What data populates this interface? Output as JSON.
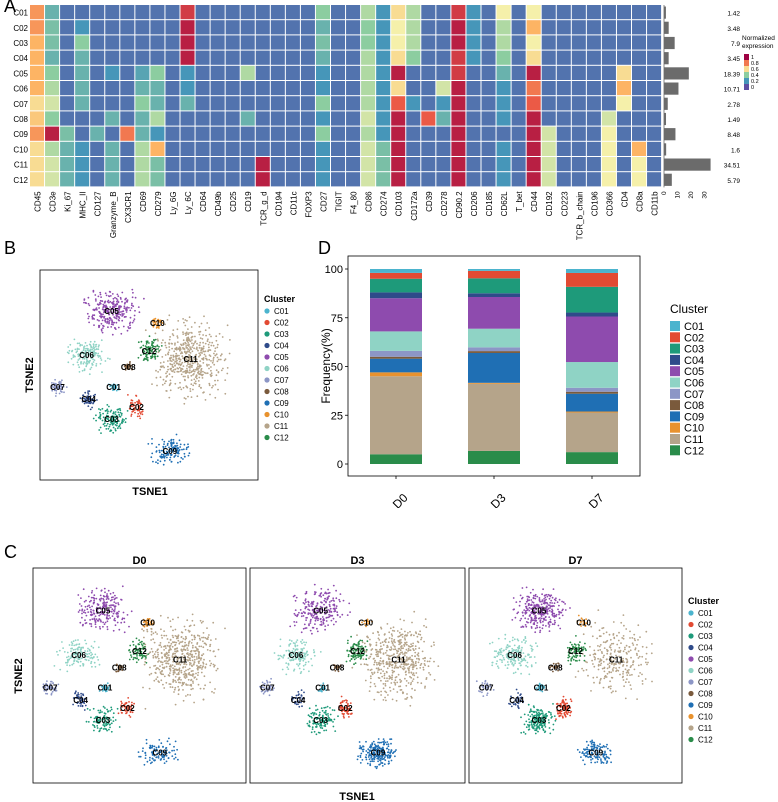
{
  "colors": {
    "clusters": [
      "#4BB4CE",
      "#E24A33",
      "#1E9A7A",
      "#2F4B8A",
      "#8E4BAE",
      "#8FD3C5",
      "#8C96C6",
      "#7A5A3C",
      "#1F6FB4",
      "#E8922E",
      "#B5A48A",
      "#2A8C4A"
    ],
    "heat_low": "#5E4FA2",
    "heat_high": "#9E0142"
  },
  "panelA": {
    "letter": "A",
    "rows": [
      "C01",
      "C02",
      "C03",
      "C04",
      "C05",
      "C06",
      "C07",
      "C08",
      "C09",
      "C10",
      "C11",
      "C12"
    ],
    "markers": [
      "CD45",
      "CD3e",
      "Ki_67",
      "MHC_II",
      "CD127",
      "Granzyme_B",
      "CX3CR1",
      "CD69",
      "CD279",
      "Ly_6G",
      "Ly_6C",
      "CD64",
      "CD49b",
      "CD25",
      "CD19",
      "TCR_g_d",
      "CD194",
      "CD11c",
      "FOXP3",
      "CD27",
      "TIGIT",
      "F4_80",
      "CD86",
      "CD274",
      "CD103",
      "CD172a",
      "CD39",
      "CD278",
      "CD90.2",
      "CD206",
      "CD185",
      "CD62L",
      "T_bet",
      "CD44",
      "CD192",
      "CD223",
      "TCR_b_chain",
      "CD196",
      "CD366",
      "CD4",
      "CD8a",
      "CD11b"
    ],
    "cluster_freq": [
      1.42,
      3.48,
      7.9,
      3.45,
      18.39,
      10.71,
      2.78,
      1.49,
      8.48,
      1.6,
      34.51,
      5.79
    ],
    "bar_ticks": [
      "0",
      "10",
      "20",
      "30"
    ],
    "legend_title": "Normalized expression",
    "legend_ticks": [
      "1",
      "0.8",
      "0.6",
      "0.4",
      "0.2",
      "0"
    ]
  },
  "panelB": {
    "letter": "B",
    "xlabel": "TSNE1",
    "ylabel": "TSNE2",
    "legend_title": "Cluster",
    "legend_items": [
      "C01",
      "C02",
      "C03",
      "C04",
      "C05",
      "C06",
      "C07",
      "C08",
      "C09",
      "C10",
      "C11",
      "C12"
    ],
    "cluster_labels": [
      "C05",
      "C10",
      "C06",
      "C12",
      "C08",
      "C11",
      "C07",
      "C01",
      "C04",
      "C02",
      "C03",
      "C09"
    ]
  },
  "panelC": {
    "letter": "C",
    "titles": [
      "D0",
      "D3",
      "D7"
    ],
    "xlabel": "TSNE1",
    "ylabel": "TSNE2",
    "legend_title": "Cluster",
    "legend_items": [
      "C01",
      "C02",
      "C03",
      "C04",
      "C05",
      "C06",
      "C07",
      "C08",
      "C09",
      "C10",
      "C11",
      "C12"
    ],
    "cluster_labels": [
      "C05",
      "C10",
      "C06",
      "C12",
      "C08",
      "C11",
      "C07",
      "C01",
      "C04",
      "C02",
      "C03",
      "C09"
    ]
  },
  "chart_data": [
    {
      "type": "heatmap",
      "rows": [
        "C01",
        "C02",
        "C03",
        "C04",
        "C05",
        "C06",
        "C07",
        "C08",
        "C09",
        "C10",
        "C11",
        "C12"
      ],
      "columns": [
        "CD45",
        "CD3e",
        "Ki_67",
        "MHC_II",
        "CD127",
        "Granzyme_B",
        "CX3CR1",
        "CD69",
        "CD279",
        "Ly_6G",
        "Ly_6C",
        "CD64",
        "CD49b",
        "CD25",
        "CD19",
        "TCR_g_d",
        "CD194",
        "CD11c",
        "FOXP3",
        "CD27",
        "TIGIT",
        "F4_80",
        "CD86",
        "CD274",
        "CD103",
        "CD172a",
        "CD39",
        "CD278",
        "CD90.2",
        "CD206",
        "CD185",
        "CD62L",
        "T_bet",
        "CD44",
        "CD192",
        "CD223",
        "TCR_b_chain",
        "CD196",
        "CD366",
        "CD4",
        "CD8a",
        "CD11b"
      ],
      "legend_title": "Normalized expression",
      "values": [
        [
          0.75,
          0.3,
          0.1,
          0.1,
          0.1,
          0.1,
          0.1,
          0.1,
          0.1,
          0.1,
          0.9,
          0.1,
          0.1,
          0.1,
          0.1,
          0.1,
          0.1,
          0.1,
          0.1,
          0.4,
          0.1,
          0.1,
          0.45,
          0.2,
          0.6,
          0.45,
          0.1,
          0.1,
          0.9,
          0.2,
          0.1,
          0.55,
          0.1,
          0.55,
          0.1,
          0.1,
          0.1,
          0.1,
          0.1,
          0.1,
          0.1,
          0.1
        ],
        [
          0.75,
          0.35,
          0.1,
          0.2,
          0.1,
          0.1,
          0.1,
          0.1,
          0.1,
          0.1,
          0.95,
          0.1,
          0.1,
          0.1,
          0.1,
          0.1,
          0.1,
          0.1,
          0.1,
          0.3,
          0.1,
          0.1,
          0.4,
          0.2,
          0.55,
          0.45,
          0.1,
          0.1,
          0.95,
          0.2,
          0.1,
          0.45,
          0.1,
          0.7,
          0.1,
          0.1,
          0.1,
          0.1,
          0.1,
          0.1,
          0.1,
          0.1
        ],
        [
          0.7,
          0.35,
          0.1,
          0.4,
          0.1,
          0.1,
          0.1,
          0.1,
          0.1,
          0.1,
          0.95,
          0.1,
          0.1,
          0.1,
          0.1,
          0.1,
          0.1,
          0.1,
          0.1,
          0.35,
          0.1,
          0.1,
          0.4,
          0.2,
          0.55,
          0.45,
          0.1,
          0.1,
          0.95,
          0.2,
          0.1,
          0.45,
          0.1,
          0.55,
          0.1,
          0.1,
          0.1,
          0.1,
          0.1,
          0.1,
          0.1,
          0.1
        ],
        [
          0.7,
          0.3,
          0.1,
          0.3,
          0.1,
          0.1,
          0.1,
          0.1,
          0.1,
          0.1,
          0.95,
          0.1,
          0.1,
          0.1,
          0.1,
          0.1,
          0.1,
          0.1,
          0.1,
          0.3,
          0.1,
          0.1,
          0.45,
          0.2,
          0.6,
          0.4,
          0.1,
          0.1,
          0.9,
          0.2,
          0.1,
          0.4,
          0.1,
          0.6,
          0.1,
          0.1,
          0.1,
          0.1,
          0.1,
          0.1,
          0.1,
          0.1
        ],
        [
          0.7,
          0.4,
          0.1,
          0.3,
          0.1,
          0.2,
          0.1,
          0.25,
          0.4,
          0.1,
          0.2,
          0.1,
          0.1,
          0.1,
          0.45,
          0.1,
          0.1,
          0.1,
          0.1,
          0.2,
          0.1,
          0.1,
          0.45,
          0.2,
          0.95,
          0.1,
          0.1,
          0.1,
          0.9,
          0.1,
          0.1,
          0.3,
          0.1,
          0.95,
          0.1,
          0.1,
          0.1,
          0.1,
          0.1,
          0.6,
          0.1,
          0.1
        ],
        [
          0.7,
          0.45,
          0.1,
          0.3,
          0.1,
          0.1,
          0.1,
          0.3,
          0.3,
          0.1,
          0.2,
          0.1,
          0.1,
          0.1,
          0.1,
          0.1,
          0.1,
          0.1,
          0.1,
          0.2,
          0.1,
          0.1,
          0.45,
          0.2,
          0.6,
          0.1,
          0.1,
          0.5,
          0.95,
          0.1,
          0.1,
          0.2,
          0.1,
          0.8,
          0.1,
          0.1,
          0.1,
          0.1,
          0.1,
          0.7,
          0.1,
          0.1
        ],
        [
          0.6,
          0.5,
          0.1,
          0.3,
          0.1,
          0.1,
          0.1,
          0.4,
          0.3,
          0.1,
          0.3,
          0.1,
          0.1,
          0.1,
          0.1,
          0.1,
          0.1,
          0.1,
          0.1,
          0.4,
          0.1,
          0.1,
          0.45,
          0.2,
          0.85,
          0.2,
          0.1,
          0.2,
          0.95,
          0.1,
          0.1,
          0.2,
          0.1,
          0.85,
          0.1,
          0.1,
          0.1,
          0.1,
          0.1,
          0.55,
          0.1,
          0.1
        ],
        [
          0.65,
          0.4,
          0.1,
          0.1,
          0.1,
          0.3,
          0.1,
          0.3,
          0.45,
          0.1,
          0.1,
          0.1,
          0.1,
          0.1,
          0.3,
          0.1,
          0.1,
          0.1,
          0.1,
          0.2,
          0.1,
          0.1,
          0.5,
          0.2,
          0.95,
          0.1,
          0.85,
          0.3,
          0.95,
          0.1,
          0.1,
          0.2,
          0.1,
          0.95,
          0.1,
          0.1,
          0.1,
          0.1,
          0.5,
          0.1,
          0.1,
          0.1
        ],
        [
          0.75,
          0.95,
          0.35,
          0.1,
          0.3,
          0.1,
          0.8,
          0.3,
          0.2,
          0.1,
          0.1,
          0.1,
          0.1,
          0.1,
          0.1,
          0.1,
          0.1,
          0.1,
          0.1,
          0.4,
          0.1,
          0.1,
          0.45,
          0.2,
          0.95,
          0.1,
          0.1,
          0.1,
          0.95,
          0.1,
          0.1,
          0.1,
          0.1,
          0.95,
          0.5,
          0.1,
          0.1,
          0.1,
          0.55,
          0.1,
          0.1,
          0.1
        ],
        [
          0.6,
          0.45,
          0.3,
          0.2,
          0.1,
          0.3,
          0.1,
          0.45,
          0.7,
          0.1,
          0.1,
          0.1,
          0.1,
          0.1,
          0.1,
          0.1,
          0.1,
          0.1,
          0.1,
          0.2,
          0.1,
          0.1,
          0.5,
          0.35,
          0.95,
          0.1,
          0.1,
          0.1,
          0.95,
          0.1,
          0.1,
          0.2,
          0.1,
          0.95,
          0.5,
          0.1,
          0.1,
          0.1,
          0.55,
          0.1,
          0.7,
          0.1
        ],
        [
          0.6,
          0.5,
          0.3,
          0.2,
          0.1,
          0.3,
          0.1,
          0.45,
          0.35,
          0.1,
          0.1,
          0.1,
          0.1,
          0.1,
          0.1,
          0.95,
          0.1,
          0.1,
          0.1,
          0.2,
          0.1,
          0.1,
          0.5,
          0.35,
          0.95,
          0.1,
          0.1,
          0.1,
          0.95,
          0.1,
          0.1,
          0.2,
          0.1,
          0.95,
          0.5,
          0.1,
          0.1,
          0.1,
          0.55,
          0.1,
          0.55,
          0.1
        ],
        [
          0.6,
          0.5,
          0.3,
          0.2,
          0.1,
          0.3,
          0.1,
          0.45,
          0.35,
          0.1,
          0.1,
          0.1,
          0.1,
          0.1,
          0.1,
          0.95,
          0.1,
          0.1,
          0.1,
          0.2,
          0.1,
          0.1,
          0.5,
          0.35,
          0.95,
          0.1,
          0.1,
          0.1,
          0.95,
          0.1,
          0.1,
          0.2,
          0.1,
          0.95,
          0.5,
          0.1,
          0.1,
          0.1,
          0.55,
          0.1,
          0.55,
          0.1
        ]
      ]
    },
    {
      "type": "bar",
      "categories": [
        "C01",
        "C02",
        "C03",
        "C04",
        "C05",
        "C06",
        "C07",
        "C08",
        "C09",
        "C10",
        "C11",
        "C12"
      ],
      "values": [
        1.42,
        3.48,
        7.9,
        3.45,
        18.39,
        10.71,
        2.78,
        1.49,
        8.48,
        1.6,
        34.51,
        5.79
      ],
      "xlim": [
        0,
        35
      ]
    },
    {
      "type": "bar",
      "stacked": true,
      "categories": [
        "D0",
        "D3",
        "D7"
      ],
      "ylabel": "Frequency(%)",
      "ylim": [
        0,
        100
      ],
      "yticks": [
        "0",
        "25",
        "50",
        "75",
        "100"
      ],
      "legend_title": "Cluster",
      "series": [
        {
          "name": "C12",
          "values": [
            5,
            7,
            6
          ]
        },
        {
          "name": "C11",
          "values": [
            40,
            36,
            20
          ]
        },
        {
          "name": "C10",
          "values": [
            2,
            0.5,
            0.5
          ]
        },
        {
          "name": "C09",
          "values": [
            7,
            16,
            9
          ]
        },
        {
          "name": "C08",
          "values": [
            1,
            1,
            1
          ]
        },
        {
          "name": "C07",
          "values": [
            3,
            2,
            2
          ]
        },
        {
          "name": "C06",
          "values": [
            10,
            10,
            13
          ]
        },
        {
          "name": "C05",
          "values": [
            17,
            17,
            23
          ]
        },
        {
          "name": "C04",
          "values": [
            3,
            2,
            2
          ]
        },
        {
          "name": "C03",
          "values": [
            7,
            8,
            13
          ]
        },
        {
          "name": "C02",
          "values": [
            3,
            4,
            7
          ]
        },
        {
          "name": "C01",
          "values": [
            2,
            1,
            2
          ]
        }
      ]
    }
  ]
}
